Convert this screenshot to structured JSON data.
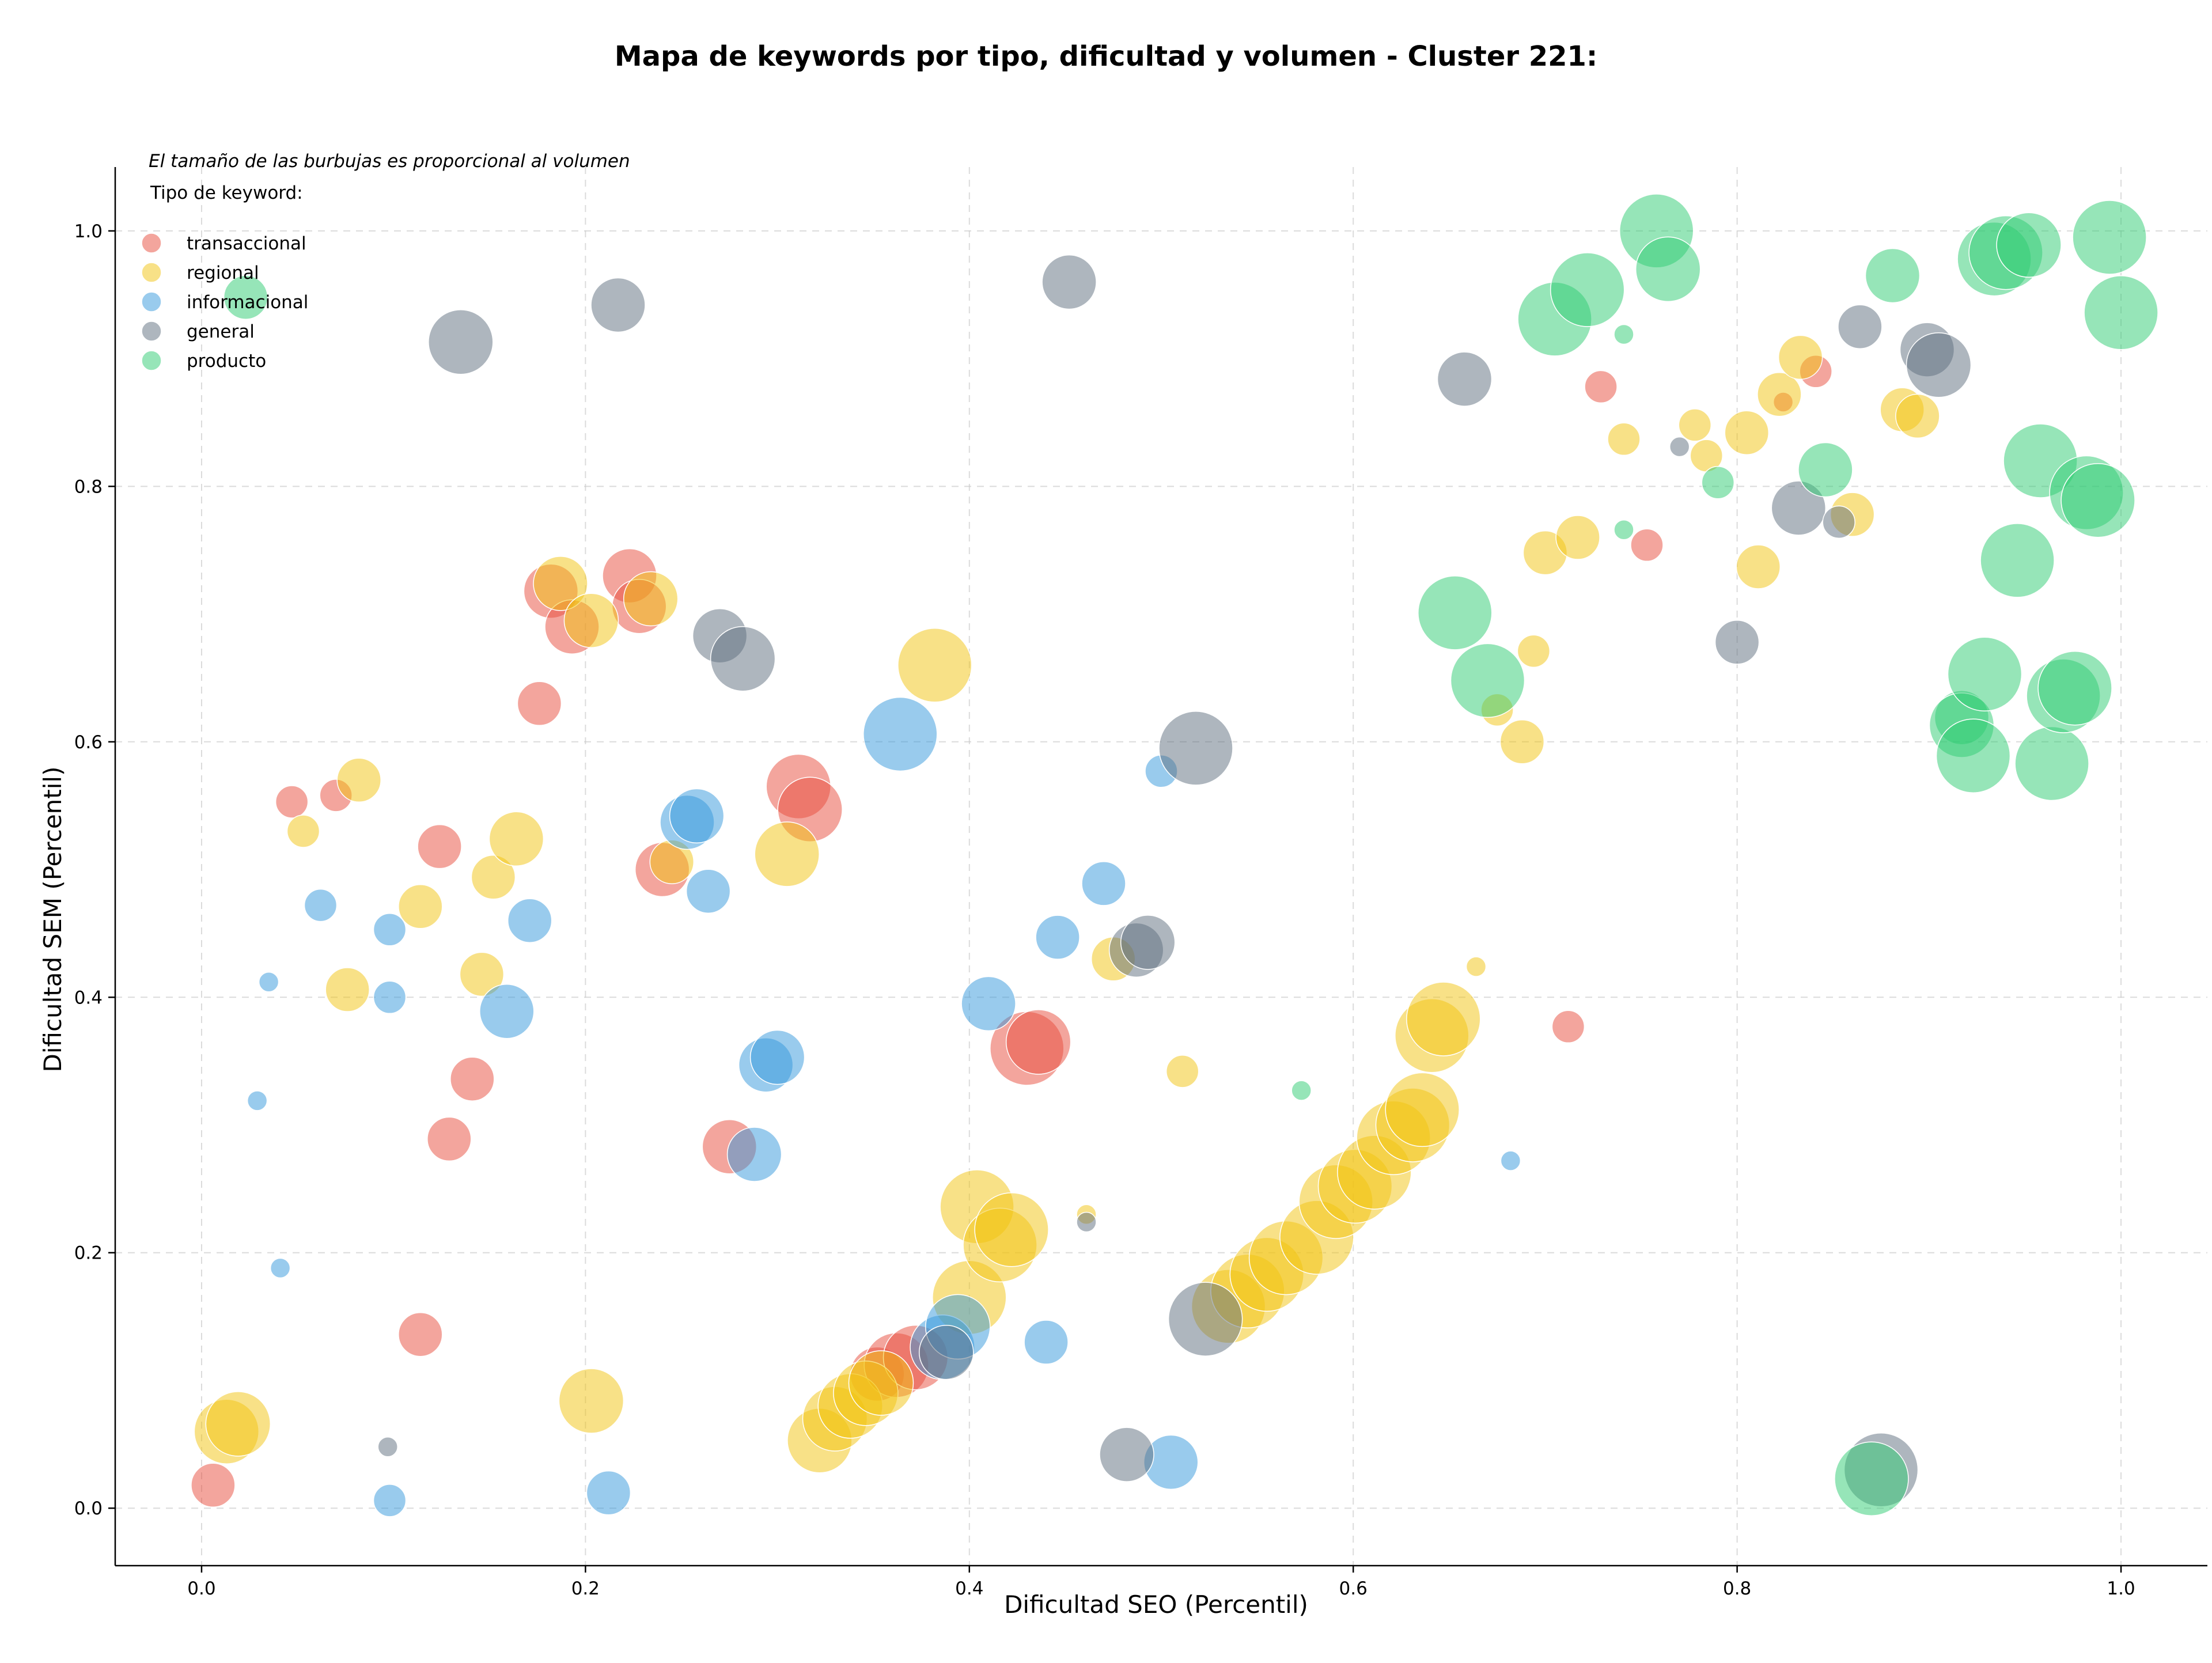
{
  "chart_data": {
    "type": "scatter",
    "title": "Mapa de keywords por tipo, dificultad y volumen - Cluster 221:",
    "xlabel": "Dificultad SEO (Percentil)",
    "ylabel": "Dificultad SEM (Percentil)",
    "xlim": [
      -0.045,
      1.045
    ],
    "ylim": [
      -0.045,
      1.05
    ],
    "xticks": [
      "0.0",
      "0.2",
      "0.4",
      "0.6",
      "0.8",
      "1.0"
    ],
    "yticks": [
      "0.0",
      "0.2",
      "0.4",
      "0.6",
      "0.8",
      "1.0"
    ],
    "grid": true,
    "legend": {
      "note": "El tamaño de las burbujas es proporcional al volumen",
      "title": "Tipo de keyword:",
      "placement": "top-left"
    },
    "series": [
      {
        "name": "transaccional",
        "color": "#e74c3c",
        "points": [
          [
            0.006,
            0.018,
            3
          ],
          [
            0.047,
            0.553,
            2
          ],
          [
            0.07,
            0.558,
            2
          ],
          [
            0.114,
            0.136,
            3
          ],
          [
            0.124,
            0.518,
            3
          ],
          [
            0.129,
            0.289,
            3
          ],
          [
            0.141,
            0.336,
            3
          ],
          [
            0.176,
            0.63,
            3
          ],
          [
            0.182,
            0.718,
            4
          ],
          [
            0.193,
            0.69,
            4
          ],
          [
            0.223,
            0.73,
            4
          ],
          [
            0.228,
            0.706,
            4
          ],
          [
            0.24,
            0.5,
            4
          ],
          [
            0.275,
            0.283,
            4
          ],
          [
            0.311,
            0.565,
            5
          ],
          [
            0.317,
            0.547,
            5
          ],
          [
            0.352,
            0.105,
            4
          ],
          [
            0.362,
            0.112,
            5
          ],
          [
            0.372,
            0.118,
            5
          ],
          [
            0.43,
            0.36,
            6
          ],
          [
            0.436,
            0.365,
            5
          ],
          [
            0.712,
            0.377,
            2
          ],
          [
            0.729,
            0.878,
            2
          ],
          [
            0.753,
            0.754,
            2
          ],
          [
            0.824,
            0.866,
            1
          ],
          [
            0.841,
            0.89,
            2
          ]
        ]
      },
      {
        "name": "regional",
        "color": "#f1c40f",
        "points": [
          [
            0.013,
            0.06,
            5
          ],
          [
            0.019,
            0.066,
            5
          ],
          [
            0.053,
            0.53,
            2
          ],
          [
            0.076,
            0.406,
            3
          ],
          [
            0.082,
            0.57,
            3
          ],
          [
            0.114,
            0.471,
            3
          ],
          [
            0.146,
            0.418,
            3
          ],
          [
            0.152,
            0.494,
            3
          ],
          [
            0.164,
            0.524,
            4
          ],
          [
            0.187,
            0.724,
            4
          ],
          [
            0.203,
            0.695,
            4
          ],
          [
            0.203,
            0.084,
            5
          ],
          [
            0.234,
            0.712,
            4
          ],
          [
            0.245,
            0.506,
            3
          ],
          [
            0.305,
            0.512,
            5
          ],
          [
            0.322,
            0.053,
            5
          ],
          [
            0.33,
            0.07,
            5
          ],
          [
            0.338,
            0.08,
            5
          ],
          [
            0.346,
            0.09,
            5
          ],
          [
            0.354,
            0.098,
            5
          ],
          [
            0.382,
            0.66,
            6
          ],
          [
            0.4,
            0.165,
            6
          ],
          [
            0.404,
            0.236,
            6
          ],
          [
            0.416,
            0.206,
            6
          ],
          [
            0.422,
            0.218,
            6
          ],
          [
            0.461,
            0.23,
            1
          ],
          [
            0.475,
            0.43,
            3
          ],
          [
            0.511,
            0.342,
            2
          ],
          [
            0.535,
            0.158,
            6
          ],
          [
            0.545,
            0.17,
            6
          ],
          [
            0.555,
            0.183,
            6
          ],
          [
            0.565,
            0.196,
            6
          ],
          [
            0.581,
            0.212,
            6
          ],
          [
            0.591,
            0.24,
            6
          ],
          [
            0.601,
            0.252,
            6
          ],
          [
            0.611,
            0.263,
            6
          ],
          [
            0.621,
            0.29,
            6
          ],
          [
            0.631,
            0.3,
            6
          ],
          [
            0.636,
            0.312,
            6
          ],
          [
            0.641,
            0.37,
            6
          ],
          [
            0.647,
            0.383,
            6
          ],
          [
            0.664,
            0.424,
            1
          ],
          [
            0.675,
            0.625,
            2
          ],
          [
            0.688,
            0.6,
            3
          ],
          [
            0.694,
            0.671,
            2
          ],
          [
            0.7,
            0.748,
            3
          ],
          [
            0.717,
            0.76,
            3
          ],
          [
            0.741,
            0.837,
            2
          ],
          [
            0.778,
            0.848,
            2
          ],
          [
            0.784,
            0.824,
            2
          ],
          [
            0.805,
            0.842,
            3
          ],
          [
            0.811,
            0.737,
            3
          ],
          [
            0.822,
            0.872,
            3
          ],
          [
            0.833,
            0.901,
            3
          ],
          [
            0.86,
            0.778,
            3
          ],
          [
            0.886,
            0.86,
            3
          ],
          [
            0.894,
            0.855,
            3
          ]
        ]
      },
      {
        "name": "informacional",
        "color": "#3498db",
        "points": [
          [
            0.029,
            0.319,
            1
          ],
          [
            0.035,
            0.412,
            1
          ],
          [
            0.041,
            0.188,
            1
          ],
          [
            0.062,
            0.472,
            2
          ],
          [
            0.098,
            0.4,
            2
          ],
          [
            0.098,
            0.453,
            2
          ],
          [
            0.098,
            0.006,
            2
          ],
          [
            0.159,
            0.389,
            4
          ],
          [
            0.171,
            0.46,
            3
          ],
          [
            0.212,
            0.012,
            3
          ],
          [
            0.253,
            0.537,
            4
          ],
          [
            0.258,
            0.542,
            4
          ],
          [
            0.264,
            0.483,
            3
          ],
          [
            0.288,
            0.277,
            4
          ],
          [
            0.294,
            0.347,
            4
          ],
          [
            0.3,
            0.353,
            4
          ],
          [
            0.364,
            0.606,
            6
          ],
          [
            0.386,
            0.126,
            5
          ],
          [
            0.394,
            0.142,
            5
          ],
          [
            0.41,
            0.395,
            4
          ],
          [
            0.44,
            0.13,
            3
          ],
          [
            0.446,
            0.447,
            3
          ],
          [
            0.47,
            0.489,
            3
          ],
          [
            0.5,
            0.577,
            2
          ],
          [
            0.505,
            0.036,
            4
          ],
          [
            0.682,
            0.272,
            1
          ]
        ]
      },
      {
        "name": "general",
        "color": "#5d6d7e",
        "points": [
          [
            0.097,
            0.048,
            1
          ],
          [
            0.135,
            0.913,
            5
          ],
          [
            0.217,
            0.942,
            4
          ],
          [
            0.27,
            0.683,
            4
          ],
          [
            0.282,
            0.665,
            5
          ],
          [
            0.388,
            0.122,
            4
          ],
          [
            0.452,
            0.96,
            4
          ],
          [
            0.461,
            0.224,
            1
          ],
          [
            0.482,
            0.042,
            4
          ],
          [
            0.487,
            0.437,
            4
          ],
          [
            0.493,
            0.443,
            4
          ],
          [
            0.518,
            0.595,
            6
          ],
          [
            0.523,
            0.148,
            6
          ],
          [
            0.658,
            0.884,
            4
          ],
          [
            0.77,
            0.831,
            1
          ],
          [
            0.8,
            0.678,
            3
          ],
          [
            0.832,
            0.783,
            4
          ],
          [
            0.853,
            0.772,
            2
          ],
          [
            0.864,
            0.925,
            3
          ],
          [
            0.875,
            0.03,
            6
          ],
          [
            0.899,
            0.907,
            4
          ],
          [
            0.905,
            0.895,
            5
          ]
        ]
      },
      {
        "name": "producto",
        "color": "#2ecc71",
        "points": [
          [
            0.023,
            0.948,
            3
          ],
          [
            0.573,
            0.327,
            1
          ],
          [
            0.653,
            0.701,
            6
          ],
          [
            0.67,
            0.648,
            6
          ],
          [
            0.705,
            0.931,
            6
          ],
          [
            0.722,
            0.954,
            6
          ],
          [
            0.741,
            0.919,
            1
          ],
          [
            0.741,
            0.766,
            1
          ],
          [
            0.758,
            1.0,
            6
          ],
          [
            0.764,
            0.97,
            5
          ],
          [
            0.79,
            0.803,
            2
          ],
          [
            0.846,
            0.813,
            4
          ],
          [
            0.87,
            0.023,
            6
          ],
          [
            0.881,
            0.965,
            4
          ],
          [
            0.917,
            0.619,
            4
          ],
          [
            0.917,
            0.613,
            5
          ],
          [
            0.923,
            0.589,
            6
          ],
          [
            0.929,
            0.653,
            6
          ],
          [
            0.934,
            0.978,
            6
          ],
          [
            0.94,
            0.983,
            6
          ],
          [
            0.946,
            0.742,
            6
          ],
          [
            0.952,
            0.989,
            5
          ],
          [
            0.958,
            0.82,
            6
          ],
          [
            0.964,
            0.583,
            6
          ],
          [
            0.97,
            0.636,
            6
          ],
          [
            0.976,
            0.642,
            6
          ],
          [
            0.982,
            0.795,
            6
          ],
          [
            0.988,
            0.789,
            6
          ],
          [
            0.994,
            0.995,
            6
          ],
          [
            1.0,
            0.936,
            6
          ]
        ]
      }
    ]
  }
}
